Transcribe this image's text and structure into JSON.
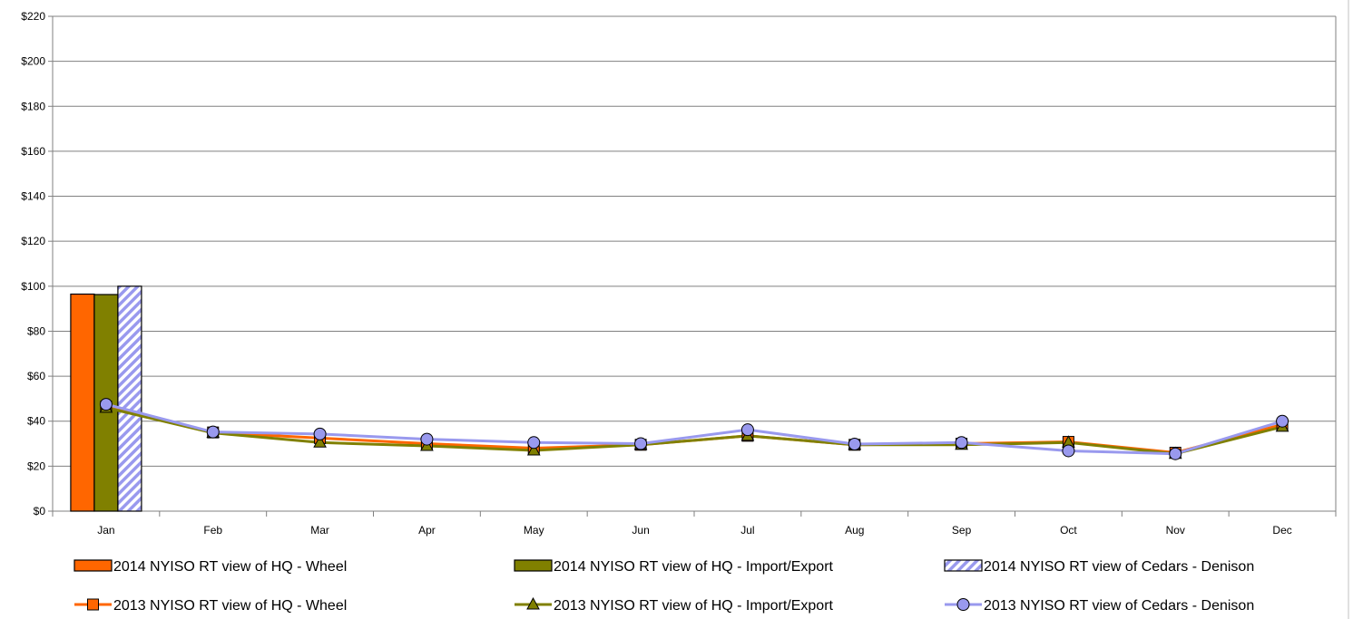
{
  "chart_data": {
    "type": "bar",
    "title": "",
    "xlabel": "",
    "ylabel": "",
    "categories": [
      "Jan",
      "Feb",
      "Mar",
      "Apr",
      "May",
      "Jun",
      "Jul",
      "Aug",
      "Sep",
      "Oct",
      "Nov",
      "Dec"
    ],
    "ylim": [
      0,
      220
    ],
    "yticks": [
      0,
      20,
      40,
      60,
      80,
      100,
      120,
      140,
      160,
      180,
      200,
      220
    ],
    "ytick_labels": [
      "$0",
      "$20",
      "$40",
      "$60",
      "$80",
      "$100",
      "$120",
      "$140",
      "$160",
      "$180",
      "$200",
      "$220"
    ],
    "grid": true,
    "legend_position": "bottom",
    "bar_series": [
      {
        "name": "2014 NYISO RT view of HQ - Wheel",
        "color": "#ff6600",
        "pattern": "solid",
        "values": [
          96.5
        ]
      },
      {
        "name": "2014 NYISO RT view of HQ - Import/Export",
        "color": "#808000",
        "pattern": "solid",
        "values": [
          96.3
        ]
      },
      {
        "name": "2014 NYISO RT view of Cedars - Denison",
        "color": "#9999ee",
        "pattern": "hatch",
        "values": [
          100.0
        ]
      }
    ],
    "line_series": [
      {
        "name": "2013 NYISO RT view of HQ - Wheel",
        "color": "#ff6600",
        "marker": "square",
        "values": [
          46.5,
          35.0,
          32.5,
          30.0,
          28.0,
          29.5,
          33.5,
          29.5,
          30.0,
          30.8,
          26.0,
          38.5
        ]
      },
      {
        "name": "2013 NYISO RT view of HQ - Import/Export",
        "color": "#808000",
        "marker": "triangle",
        "values": [
          46.0,
          34.8,
          30.5,
          29.0,
          27.0,
          29.5,
          33.5,
          29.5,
          29.5,
          30.5,
          25.5,
          37.5
        ]
      },
      {
        "name": "2013 NYISO RT view of Cedars - Denison",
        "color": "#9999ee",
        "marker": "circle",
        "values": [
          47.5,
          35.2,
          34.3,
          32.0,
          30.5,
          30.0,
          36.2,
          29.8,
          30.5,
          26.8,
          25.5,
          40.0
        ]
      }
    ]
  }
}
